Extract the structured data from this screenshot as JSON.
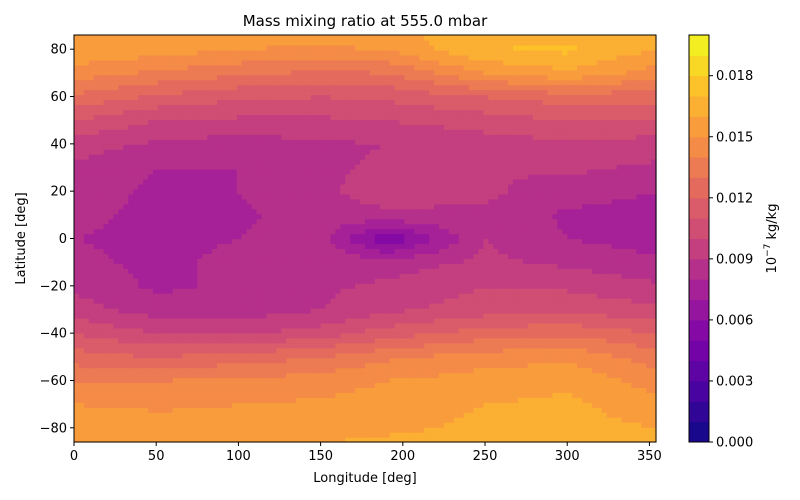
{
  "chart_data": {
    "type": "heatmap",
    "title": "Mass mixing ratio at 555.0 mbar",
    "xlabel": "Longitude [deg]",
    "ylabel": "Latitude [deg]",
    "xlim": [
      0,
      354
    ],
    "ylim": [
      -86,
      86
    ],
    "x_ticks": [
      0,
      50,
      100,
      150,
      200,
      250,
      300,
      350
    ],
    "y_ticks": [
      -80,
      -60,
      -40,
      -20,
      0,
      20,
      40,
      60,
      80
    ],
    "grid": false,
    "colorbar": {
      "label_base": "10",
      "label_exponent": "−7",
      "label_unit": " kg/kg",
      "range": [
        0.0,
        0.02
      ],
      "ticks": [
        "0.000",
        "0.003",
        "0.006",
        "0.009",
        "0.012",
        "0.015",
        "0.018"
      ],
      "tick_values": [
        0.0,
        0.003,
        0.006,
        0.009,
        0.012,
        0.015,
        0.018
      ],
      "level_step": 0.001,
      "colormap": "plasma"
    },
    "field_samples": {
      "latitudes": [
        -86,
        -80,
        -70,
        -60,
        -50,
        -40,
        -30,
        -20,
        -10,
        0,
        10,
        20,
        30,
        40,
        50,
        60,
        70,
        80,
        86
      ],
      "longitudes": [
        0,
        50,
        100,
        150,
        190,
        250,
        300,
        354
      ],
      "values": [
        [
          0.016,
          0.0158,
          0.016,
          0.016,
          0.0162,
          0.0165,
          0.0165,
          0.0162
        ],
        [
          0.016,
          0.0155,
          0.0155,
          0.0155,
          0.0158,
          0.0162,
          0.0163,
          0.016
        ],
        [
          0.015,
          0.0148,
          0.015,
          0.0152,
          0.0155,
          0.016,
          0.0162,
          0.0155
        ],
        [
          0.014,
          0.014,
          0.0142,
          0.0145,
          0.015,
          0.0155,
          0.0158,
          0.0145
        ],
        [
          0.0125,
          0.012,
          0.0125,
          0.013,
          0.0138,
          0.0145,
          0.0148,
          0.0135
        ],
        [
          0.011,
          0.01,
          0.0098,
          0.0105,
          0.0115,
          0.0125,
          0.0128,
          0.012
        ],
        [
          0.0095,
          0.0085,
          0.0085,
          0.009,
          0.0098,
          0.0105,
          0.0108,
          0.0102
        ],
        [
          0.0088,
          0.0078,
          0.0082,
          0.0088,
          0.0092,
          0.01,
          0.0098,
          0.0092
        ],
        [
          0.0082,
          0.0078,
          0.0082,
          0.0088,
          0.0085,
          0.0092,
          0.0088,
          0.0082
        ],
        [
          0.008,
          0.0078,
          0.008,
          0.0085,
          0.005,
          0.009,
          0.008,
          0.0075
        ],
        [
          0.0082,
          0.0078,
          0.0078,
          0.0085,
          0.0088,
          0.0088,
          0.0078,
          0.0075
        ],
        [
          0.0085,
          0.0078,
          0.008,
          0.0088,
          0.0095,
          0.0092,
          0.0085,
          0.008
        ],
        [
          0.0088,
          0.008,
          0.008,
          0.0088,
          0.0092,
          0.009,
          0.0092,
          0.0088
        ],
        [
          0.0095,
          0.0088,
          0.0085,
          0.0088,
          0.009,
          0.0095,
          0.0098,
          0.0095
        ],
        [
          0.011,
          0.01,
          0.0098,
          0.0098,
          0.01,
          0.0105,
          0.011,
          0.011
        ],
        [
          0.0128,
          0.0118,
          0.0112,
          0.011,
          0.0112,
          0.012,
          0.0125,
          0.0125
        ],
        [
          0.0145,
          0.0138,
          0.0132,
          0.0128,
          0.013,
          0.015,
          0.0158,
          0.0145
        ],
        [
          0.0158,
          0.0155,
          0.015,
          0.0148,
          0.015,
          0.017,
          0.0172,
          0.016
        ],
        [
          0.016,
          0.0158,
          0.0155,
          0.0155,
          0.0158,
          0.0165,
          0.0165,
          0.0162
        ]
      ]
    }
  }
}
